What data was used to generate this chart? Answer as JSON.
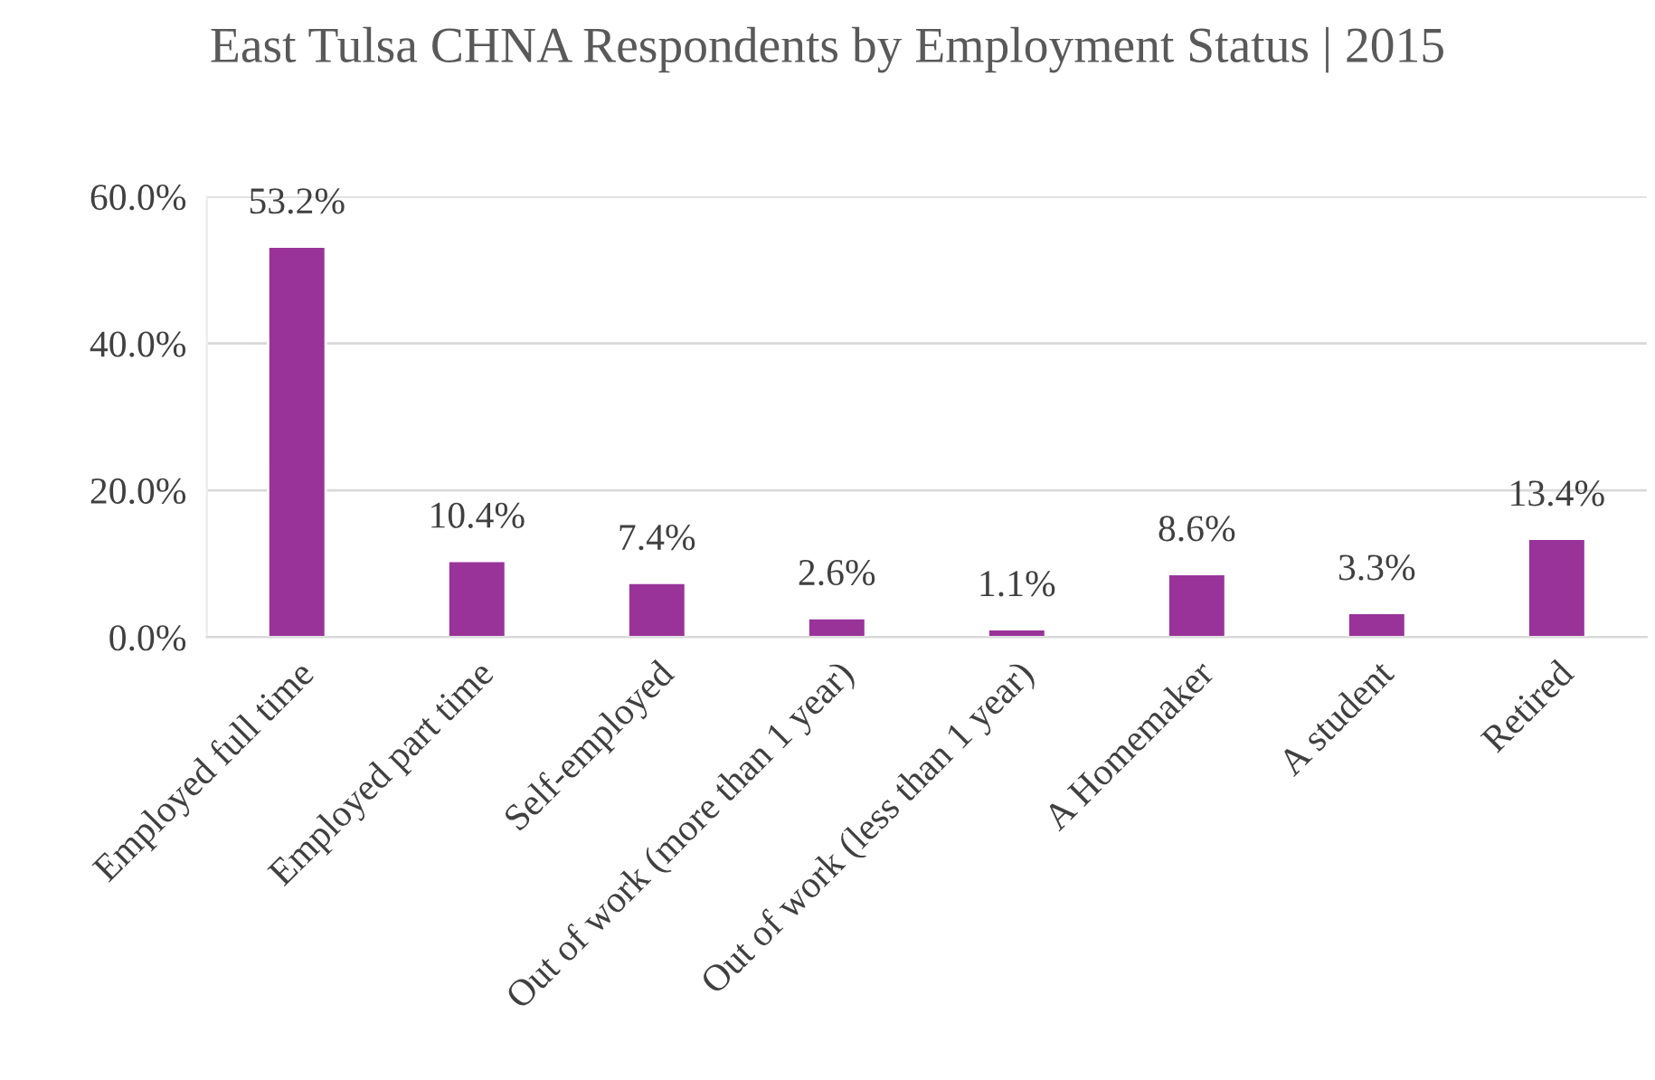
{
  "chart_data": {
    "type": "bar",
    "title": "East Tulsa CHNA Respondents by Employment Status | 2015",
    "categories": [
      "Employed full time",
      "Employed part time",
      "Self-employed",
      "Out of work (more than 1 year)",
      "Out of work (less than 1 year)",
      "A Homemaker",
      "A student",
      "Retired"
    ],
    "values": [
      53.2,
      10.4,
      7.4,
      2.6,
      1.1,
      8.6,
      3.3,
      13.4
    ],
    "value_labels": [
      "53.2%",
      "10.4%",
      "7.4%",
      "2.6%",
      "1.1%",
      "8.6%",
      "3.3%",
      "13.4%"
    ],
    "color": "#993399",
    "ylim": [
      0,
      60
    ],
    "yticks": [
      {
        "value": 0,
        "label": "0.0%"
      },
      {
        "value": 20,
        "label": "20.0%"
      },
      {
        "value": 40,
        "label": "40.0%"
      },
      {
        "value": 60,
        "label": "60.0%"
      }
    ],
    "grid": "y"
  }
}
